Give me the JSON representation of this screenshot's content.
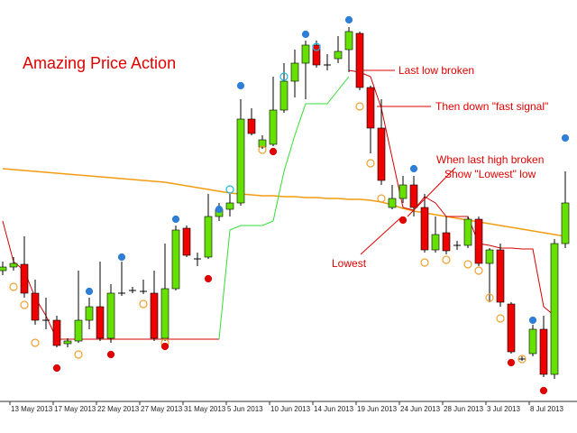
{
  "chart_data": {
    "type": "candlestick",
    "title": "Amazing Price Action",
    "annotations": [
      "Last low broken",
      "Then down \"fast signal\"",
      "When last high broken",
      "Show \"Lowest\" low",
      "Lowest"
    ],
    "categories": [
      "13 May 2013",
      null,
      null,
      null,
      "17 May 2013",
      null,
      null,
      null,
      "22 May 2013",
      null,
      null,
      null,
      "27 May 2013",
      null,
      null,
      null,
      "31 May 2013",
      null,
      null,
      null,
      "5 Jun 2013",
      null,
      null,
      null,
      "10 Jun 2013",
      null,
      null,
      null,
      "14 Jun 2013",
      null,
      null,
      null,
      "19 Jun 2013",
      null,
      null,
      null,
      "24 Jun 2013",
      null,
      null,
      null,
      "28 Jun 2013",
      null,
      null,
      null,
      "3 Jul 2013",
      null,
      null,
      null,
      "8 Jul 2013",
      null,
      null,
      null,
      null
    ],
    "open": [
      145,
      149,
      152,
      120,
      90,
      90,
      64,
      67,
      90,
      105,
      70,
      120,
      123,
      122,
      120,
      70,
      125,
      192,
      158,
      160,
      205,
      213,
      220,
      313,
      282,
      285,
      323,
      355,
      375,
      395,
      373,
      380,
      390,
      408,
      348,
      303,
      215,
      225,
      240,
      215,
      168,
      187,
      173,
      173,
      202,
      153,
      168,
      108,
      47,
      53,
      80,
      30,
      175
    ],
    "high": [
      155,
      160,
      183,
      135,
      115,
      95,
      70,
      145,
      115,
      155,
      130,
      155,
      127,
      135,
      145,
      175,
      195,
      195,
      165,
      230,
      220,
      230,
      335,
      325,
      295,
      360,
      375,
      390,
      400,
      400,
      385,
      405,
      415,
      410,
      350,
      335,
      240,
      250,
      250,
      230,
      205,
      205,
      178,
      205,
      205,
      170,
      175,
      110,
      50,
      85,
      95,
      180,
      255
    ],
    "low": [
      140,
      145,
      115,
      85,
      80,
      60,
      60,
      65,
      80,
      67,
      65,
      117,
      120,
      119,
      67,
      67,
      123,
      160,
      150,
      158,
      200,
      205,
      217,
      295,
      280,
      283,
      320,
      337,
      335,
      370,
      367,
      375,
      365,
      345,
      275,
      240,
      213,
      220,
      205,
      165,
      165,
      163,
      168,
      170,
      150,
      110,
      105,
      53,
      45,
      50,
      27,
      25,
      170
    ],
    "close": [
      149,
      153,
      120,
      90,
      91,
      62,
      67,
      90,
      105,
      70,
      120,
      121,
      124,
      123,
      70,
      125,
      190,
      162,
      158,
      205,
      213,
      220,
      313,
      297,
      290,
      323,
      355,
      375,
      395,
      373,
      374,
      388,
      410,
      348,
      303,
      245,
      225,
      240,
      215,
      168,
      185,
      167,
      173,
      202,
      153,
      168,
      110,
      55,
      48,
      80,
      30,
      175,
      220
    ],
    "up_color": "#66e000",
    "down_color": "#ee0000",
    "series": [
      {
        "color": "#f39c12",
        "values": [
          258,
          257,
          256,
          255,
          254,
          253,
          252,
          251,
          250,
          249,
          248,
          247,
          246,
          245,
          244,
          243,
          241,
          239,
          237,
          235,
          233,
          231,
          230,
          229,
          228,
          228,
          227,
          227,
          226,
          226,
          225,
          225,
          224,
          224,
          223,
          221,
          218,
          214,
          211,
          209,
          207,
          205,
          203,
          201,
          199,
          197,
          195,
          193,
          191,
          189,
          187,
          185,
          183
        ]
      },
      {
        "color": "#d40000",
        "values": [
          200,
          155,
          145,
          115,
          95,
          69,
          69,
          69,
          69,
          69,
          69,
          69,
          69,
          69,
          69,
          69,
          69,
          69,
          69,
          69,
          69,
          null,
          null,
          null,
          null,
          null,
          null,
          null,
          null,
          null,
          null,
          null,
          367,
          365,
          360,
          325,
          270,
          215,
          212,
          227,
          220,
          205,
          205,
          205,
          175,
          173,
          170,
          170,
          169,
          169,
          105,
          95,
          null
        ]
      },
      {
        "color": "#33dd33",
        "values": [
          null,
          null,
          null,
          null,
          null,
          null,
          null,
          null,
          null,
          null,
          null,
          null,
          null,
          null,
          null,
          null,
          null,
          null,
          null,
          null,
          69,
          190,
          195,
          195,
          195,
          200,
          255,
          295,
          330,
          330,
          330,
          345,
          360,
          null,
          null,
          null,
          null,
          null,
          null,
          null,
          null,
          null,
          null,
          null,
          null,
          null,
          null,
          null,
          null,
          null,
          null,
          null,
          null
        ]
      }
    ],
    "markers": [
      {
        "color": "#2f7fd8",
        "filled": true,
        "points": [
          [
            8,
            122
          ],
          [
            11,
            160
          ],
          [
            16,
            202
          ],
          [
            20,
            213
          ],
          [
            22,
            350
          ],
          [
            28,
            407
          ],
          [
            32,
            423
          ],
          [
            38,
            258
          ],
          [
            49,
            90
          ],
          [
            52,
            292
          ]
        ]
      },
      {
        "color": "#1fb8d8",
        "filled": false,
        "points": [
          [
            21,
            235
          ],
          [
            26,
            360
          ],
          [
            29,
            393
          ]
        ]
      },
      {
        "color": "#f0a030",
        "filled": false,
        "points": [
          [
            1,
            127
          ],
          [
            2,
            107
          ],
          [
            3,
            65
          ],
          [
            7,
            52
          ],
          [
            13,
            108
          ],
          [
            15,
            65
          ],
          [
            24,
            279
          ],
          [
            33,
            327
          ],
          [
            34,
            264
          ],
          [
            35,
            225
          ],
          [
            39,
            154
          ],
          [
            41,
            157
          ],
          [
            43,
            152
          ],
          [
            44,
            145
          ],
          [
            45,
            115
          ],
          [
            46,
            92
          ],
          [
            48,
            47
          ]
        ]
      },
      {
        "color": "#e00000",
        "filled": true,
        "points": [
          [
            5,
            37
          ],
          [
            10,
            52
          ],
          [
            15,
            61
          ],
          [
            19,
            136
          ],
          [
            25,
            277
          ],
          [
            37,
            201
          ],
          [
            47,
            43
          ],
          [
            50,
            12
          ]
        ]
      }
    ],
    "ylim": [
      0,
      445
    ]
  }
}
